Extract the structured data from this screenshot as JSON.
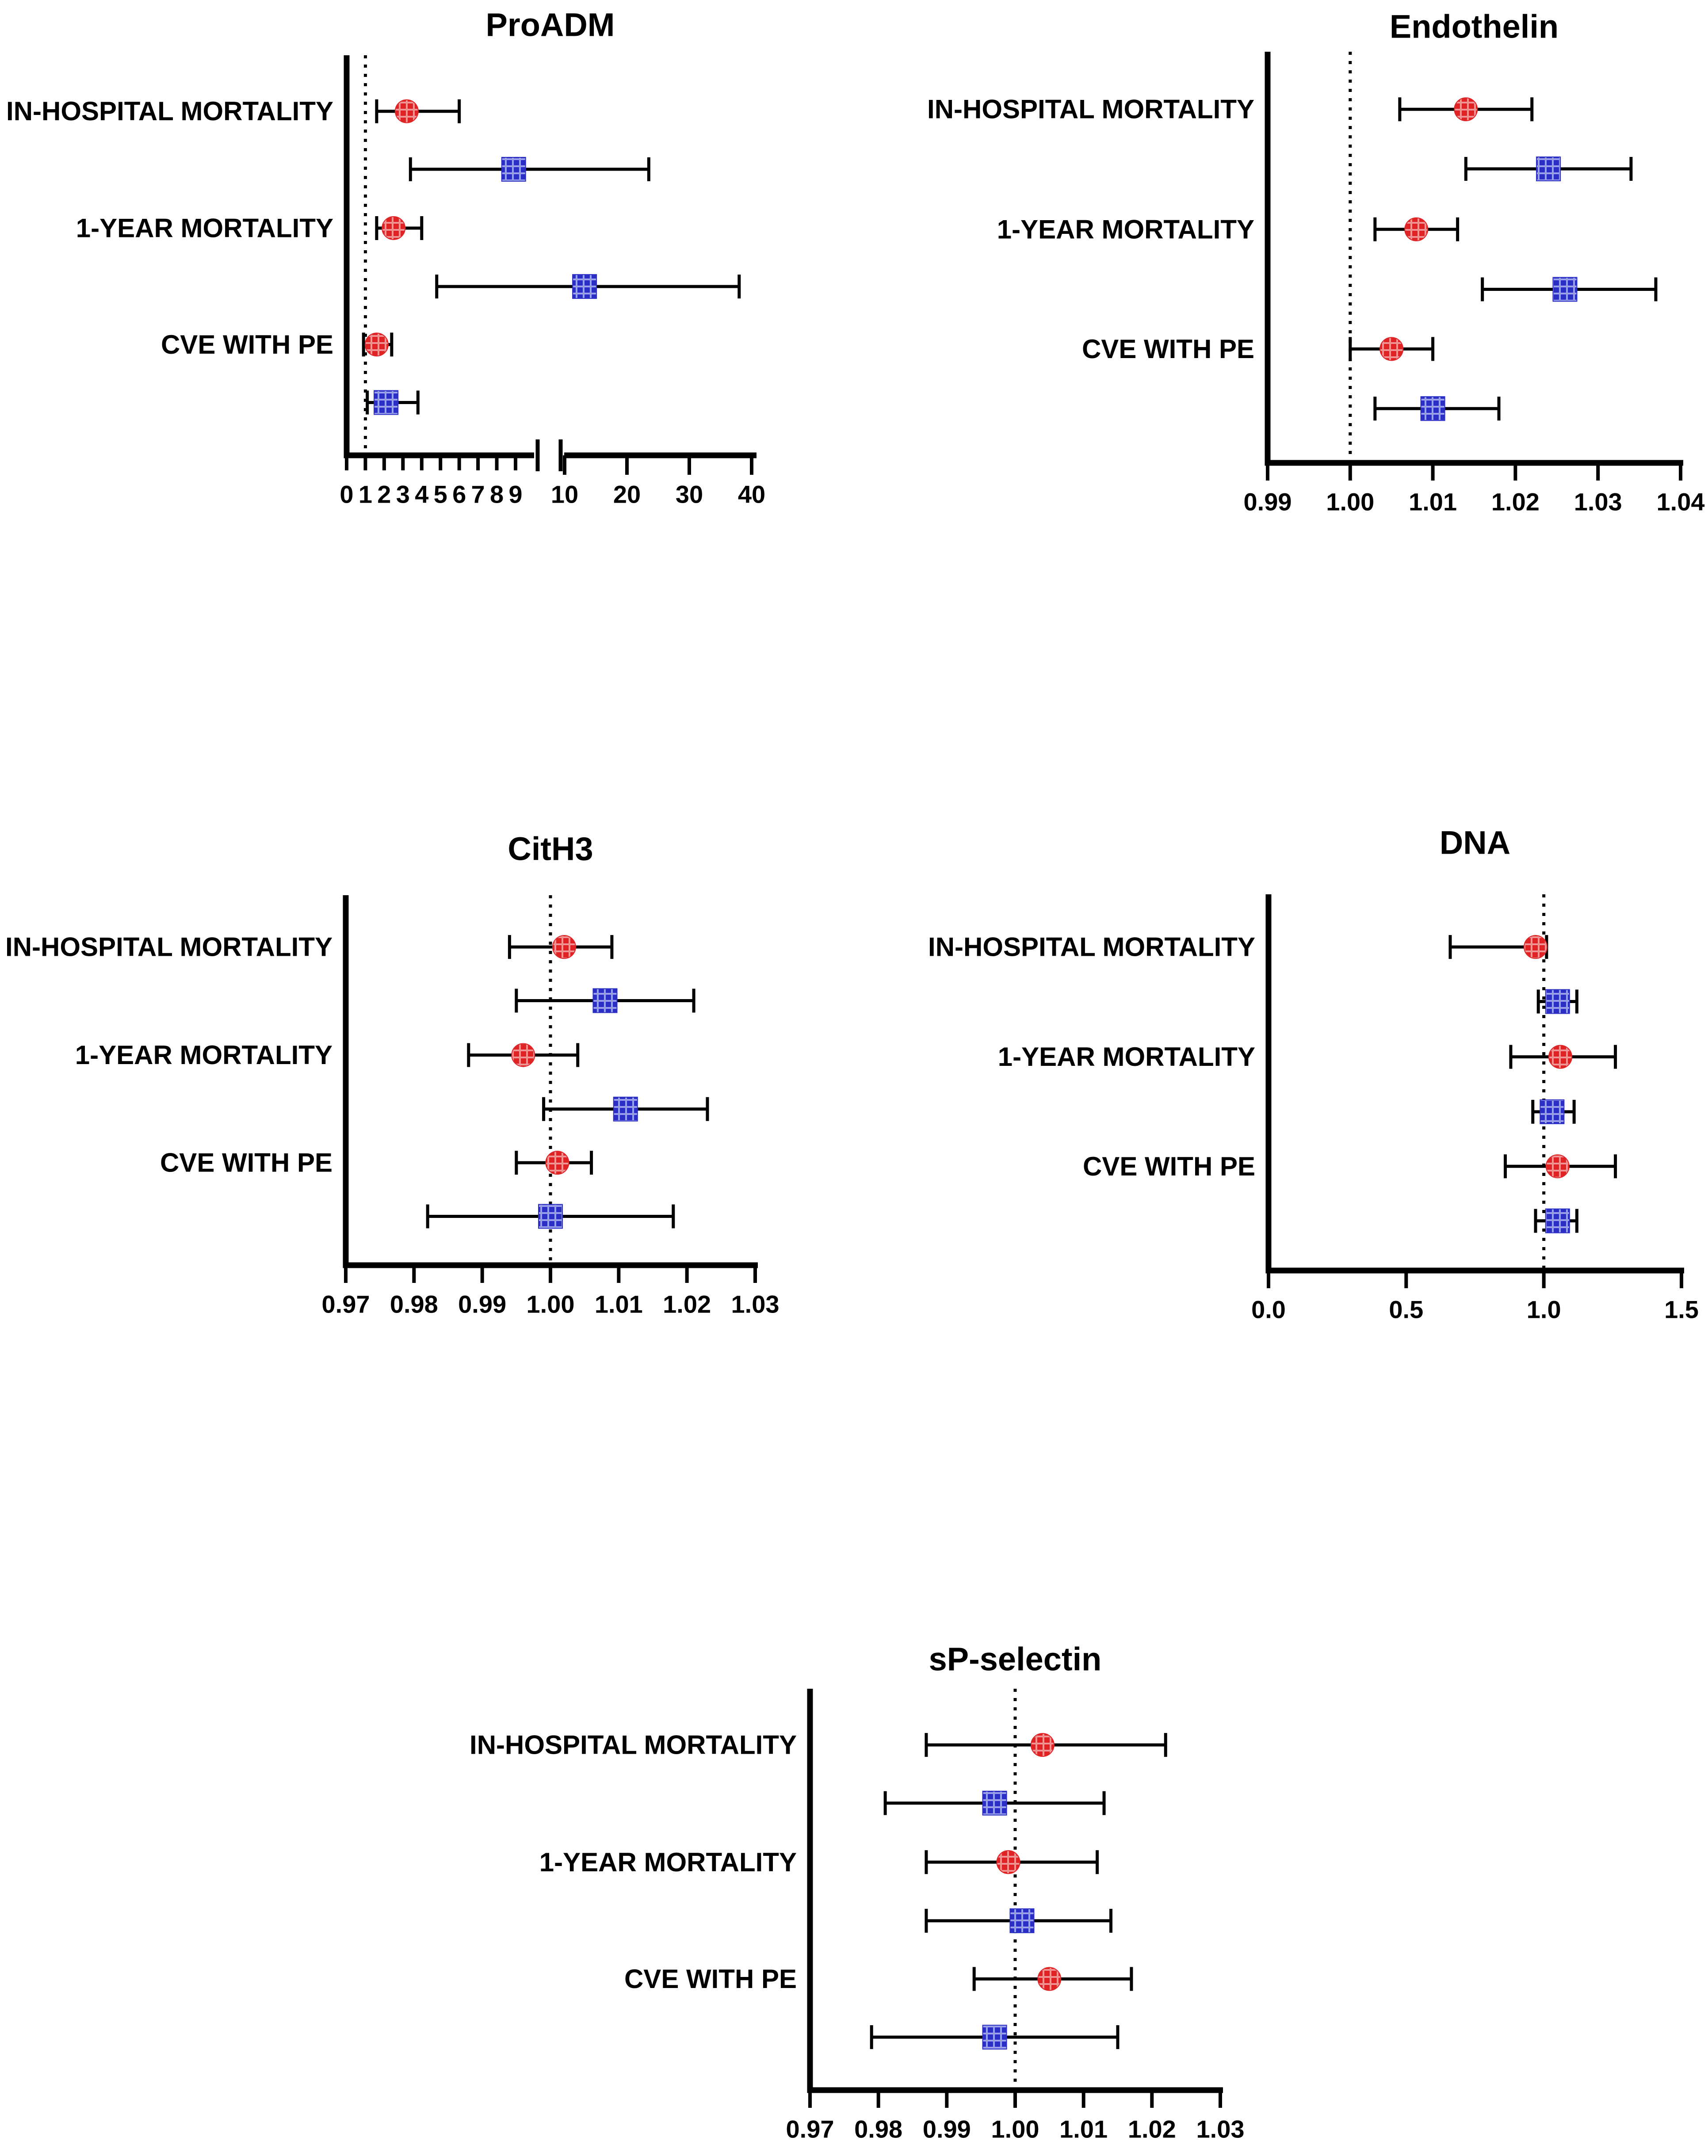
{
  "figure": {
    "background": "#FFFFFF",
    "description": "Five forest plots of biomarkers with 95% confidence intervals for three clinical outcomes"
  },
  "colors": {
    "red_marker": "#DF2426",
    "red_marker_light": "#F29394",
    "blue_marker": "#2B2FC4",
    "blue_marker_light": "#9BA0EA",
    "axis": "#000000",
    "text": "#000000"
  },
  "categories": [
    "IN-HOSPITAL MORTALITY",
    "1-YEAR MORTALITY",
    "CVE WITH PE"
  ],
  "chart_data": [
    {
      "type": "forest",
      "title": "ProADM",
      "legend_position": "none",
      "grid": false,
      "axis": {
        "style": "segmented",
        "ref_line": 1,
        "segments": [
          {
            "min": 0,
            "max": 9,
            "ticks": [
              0,
              1,
              2,
              3,
              4,
              5,
              6,
              7,
              8,
              9
            ],
            "tick_labels": [
              "0",
              "1",
              "2",
              "3",
              "4",
              "5",
              "6",
              "7",
              "8",
              "9"
            ]
          },
          {
            "min": 10,
            "max": 40,
            "ticks": [
              10,
              20,
              30,
              40
            ],
            "tick_labels": [
              "10",
              "20",
              "30",
              "40"
            ]
          }
        ]
      },
      "rows": [
        {
          "category": "IN-HOSPITAL MORTALITY",
          "series": "red-circle",
          "value": 3.2,
          "ci_low": 1.6,
          "ci_high": 6.0
        },
        {
          "category": "IN-HOSPITAL MORTALITY",
          "series": "blue-square",
          "value": 8.9,
          "ci_low": 3.4,
          "ci_high": 23.5
        },
        {
          "category": "1-YEAR MORTALITY",
          "series": "red-circle",
          "value": 2.5,
          "ci_low": 1.6,
          "ci_high": 4.0
        },
        {
          "category": "1-YEAR MORTALITY",
          "series": "blue-square",
          "value": 13.2,
          "ci_low": 4.8,
          "ci_high": 38.0
        },
        {
          "category": "CVE WITH PE",
          "series": "red-circle",
          "value": 1.6,
          "ci_low": 0.9,
          "ci_high": 2.4
        },
        {
          "category": "CVE WITH PE",
          "series": "blue-square",
          "value": 2.1,
          "ci_low": 1.1,
          "ci_high": 3.8
        }
      ]
    },
    {
      "type": "forest",
      "title": "Endothelin",
      "legend_position": "none",
      "grid": false,
      "axis": {
        "style": "linear",
        "min": 0.99,
        "max": 1.04,
        "ref_line": 1.0,
        "ticks": [
          0.99,
          1.0,
          1.01,
          1.02,
          1.03,
          1.04
        ],
        "tick_labels": [
          "0.99",
          "1.00",
          "1.01",
          "1.02",
          "1.03",
          "1.04"
        ]
      },
      "rows": [
        {
          "category": "IN-HOSPITAL MORTALITY",
          "series": "red-circle",
          "value": 1.014,
          "ci_low": 1.006,
          "ci_high": 1.022
        },
        {
          "category": "IN-HOSPITAL MORTALITY",
          "series": "blue-square",
          "value": 1.024,
          "ci_low": 1.014,
          "ci_high": 1.034
        },
        {
          "category": "1-YEAR MORTALITY",
          "series": "red-circle",
          "value": 1.008,
          "ci_low": 1.003,
          "ci_high": 1.013
        },
        {
          "category": "1-YEAR MORTALITY",
          "series": "blue-square",
          "value": 1.026,
          "ci_low": 1.016,
          "ci_high": 1.037
        },
        {
          "category": "CVE WITH PE",
          "series": "red-circle",
          "value": 1.005,
          "ci_low": 1.0,
          "ci_high": 1.01
        },
        {
          "category": "CVE WITH PE",
          "series": "blue-square",
          "value": 1.01,
          "ci_low": 1.003,
          "ci_high": 1.018
        }
      ]
    },
    {
      "type": "forest",
      "title": "CitH3",
      "legend_position": "none",
      "grid": false,
      "axis": {
        "style": "linear",
        "min": 0.97,
        "max": 1.03,
        "ref_line": 1.0,
        "ticks": [
          0.97,
          0.98,
          0.99,
          1.0,
          1.01,
          1.02,
          1.03
        ],
        "tick_labels": [
          "0.97",
          "0.98",
          "0.99",
          "1.00",
          "1.01",
          "1.02",
          "1.03"
        ]
      },
      "rows": [
        {
          "category": "IN-HOSPITAL MORTALITY",
          "series": "red-circle",
          "value": 1.002,
          "ci_low": 0.994,
          "ci_high": 1.009
        },
        {
          "category": "IN-HOSPITAL MORTALITY",
          "series": "blue-square",
          "value": 1.008,
          "ci_low": 0.995,
          "ci_high": 1.021
        },
        {
          "category": "1-YEAR MORTALITY",
          "series": "red-circle",
          "value": 0.996,
          "ci_low": 0.988,
          "ci_high": 1.004
        },
        {
          "category": "1-YEAR MORTALITY",
          "series": "blue-square",
          "value": 1.011,
          "ci_low": 0.999,
          "ci_high": 1.023
        },
        {
          "category": "CVE WITH PE",
          "series": "red-circle",
          "value": 1.001,
          "ci_low": 0.995,
          "ci_high": 1.006
        },
        {
          "category": "CVE WITH PE",
          "series": "blue-square",
          "value": 1.0,
          "ci_low": 0.982,
          "ci_high": 1.018
        }
      ]
    },
    {
      "type": "forest",
      "title": "DNA",
      "legend_position": "none",
      "grid": false,
      "axis": {
        "style": "linear",
        "min": 0.0,
        "max": 1.5,
        "ref_line": 1.0,
        "ticks": [
          0.0,
          0.5,
          1.0,
          1.5
        ],
        "tick_labels": [
          "0.0",
          "0.5",
          "1.0",
          "1.5"
        ]
      },
      "rows": [
        {
          "category": "IN-HOSPITAL MORTALITY",
          "series": "red-circle",
          "value": 0.97,
          "ci_low": 0.66,
          "ci_high": 1.01
        },
        {
          "category": "IN-HOSPITAL MORTALITY",
          "series": "blue-square",
          "value": 1.05,
          "ci_low": 0.98,
          "ci_high": 1.12
        },
        {
          "category": "1-YEAR MORTALITY",
          "series": "red-circle",
          "value": 1.06,
          "ci_low": 0.88,
          "ci_high": 1.26
        },
        {
          "category": "1-YEAR MORTALITY",
          "series": "blue-square",
          "value": 1.03,
          "ci_low": 0.96,
          "ci_high": 1.11
        },
        {
          "category": "CVE WITH PE",
          "series": "red-circle",
          "value": 1.05,
          "ci_low": 0.86,
          "ci_high": 1.26
        },
        {
          "category": "CVE WITH PE",
          "series": "blue-square",
          "value": 1.05,
          "ci_low": 0.97,
          "ci_high": 1.12
        }
      ]
    },
    {
      "type": "forest",
      "title": "sP-selectin",
      "legend_position": "none",
      "grid": false,
      "axis": {
        "style": "linear",
        "min": 0.97,
        "max": 1.03,
        "ref_line": 1.0,
        "ticks": [
          0.97,
          0.98,
          0.99,
          1.0,
          1.01,
          1.02,
          1.03
        ],
        "tick_labels": [
          "0.97",
          "0.98",
          "0.99",
          "1.00",
          "1.01",
          "1.02",
          "1.03"
        ]
      },
      "rows": [
        {
          "category": "IN-HOSPITAL MORTALITY",
          "series": "red-circle",
          "value": 1.004,
          "ci_low": 0.987,
          "ci_high": 1.022
        },
        {
          "category": "IN-HOSPITAL MORTALITY",
          "series": "blue-square",
          "value": 0.997,
          "ci_low": 0.981,
          "ci_high": 1.013
        },
        {
          "category": "1-YEAR MORTALITY",
          "series": "red-circle",
          "value": 0.999,
          "ci_low": 0.987,
          "ci_high": 1.012
        },
        {
          "category": "1-YEAR MORTALITY",
          "series": "blue-square",
          "value": 1.001,
          "ci_low": 0.987,
          "ci_high": 1.014
        },
        {
          "category": "CVE WITH PE",
          "series": "red-circle",
          "value": 1.005,
          "ci_low": 0.994,
          "ci_high": 1.017
        },
        {
          "category": "CVE WITH PE",
          "series": "blue-square",
          "value": 0.997,
          "ci_low": 0.979,
          "ci_high": 1.015
        }
      ]
    }
  ]
}
